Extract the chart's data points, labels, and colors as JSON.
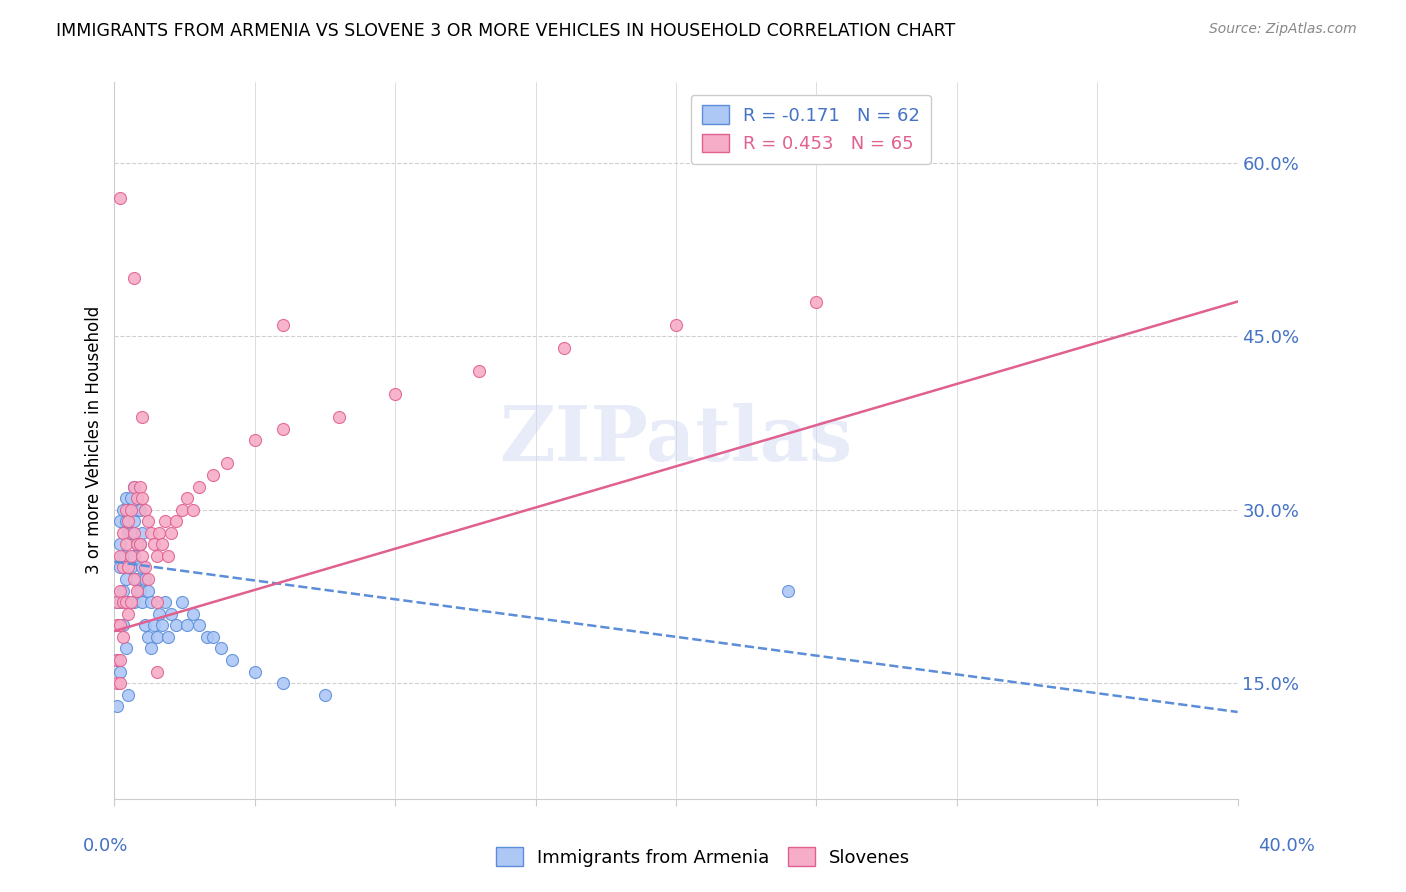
{
  "title": "IMMIGRANTS FROM ARMENIA VS SLOVENE 3 OR MORE VEHICLES IN HOUSEHOLD CORRELATION CHART",
  "source": "Source: ZipAtlas.com",
  "ylabel": "3 or more Vehicles in Household",
  "ytick_vals": [
    0.15,
    0.3,
    0.45,
    0.6
  ],
  "ytick_labels": [
    "15.0%",
    "30.0%",
    "45.0%",
    "60.0%"
  ],
  "xmin": 0.0,
  "xmax": 0.4,
  "ymin": 0.05,
  "ymax": 0.67,
  "scatter_color_armenia": "#adc8f5",
  "scatter_color_slovene": "#f5adc8",
  "line_color_armenia": "#5b8dd9",
  "line_color_slovene": "#e06090",
  "legend_label_armenia": "Immigrants from Armenia",
  "legend_label_slovene": "Slovenes",
  "legend_r1": "R = -0.171",
  "legend_n1": "N = 62",
  "legend_r2": "R = 0.453",
  "legend_n2": "N = 65",
  "armenia_x": [
    0.001,
    0.001,
    0.001,
    0.002,
    0.002,
    0.002,
    0.002,
    0.002,
    0.003,
    0.003,
    0.003,
    0.003,
    0.004,
    0.004,
    0.004,
    0.004,
    0.005,
    0.005,
    0.005,
    0.005,
    0.006,
    0.006,
    0.006,
    0.007,
    0.007,
    0.007,
    0.007,
    0.008,
    0.008,
    0.008,
    0.009,
    0.009,
    0.009,
    0.01,
    0.01,
    0.01,
    0.011,
    0.011,
    0.012,
    0.012,
    0.013,
    0.013,
    0.014,
    0.015,
    0.016,
    0.017,
    0.018,
    0.019,
    0.02,
    0.022,
    0.024,
    0.026,
    0.028,
    0.03,
    0.033,
    0.035,
    0.038,
    0.042,
    0.05,
    0.06,
    0.075,
    0.24
  ],
  "armenia_y": [
    0.22,
    0.17,
    0.13,
    0.29,
    0.27,
    0.25,
    0.22,
    0.16,
    0.3,
    0.26,
    0.23,
    0.2,
    0.31,
    0.29,
    0.24,
    0.18,
    0.3,
    0.28,
    0.22,
    0.14,
    0.31,
    0.28,
    0.25,
    0.32,
    0.29,
    0.26,
    0.22,
    0.3,
    0.27,
    0.24,
    0.3,
    0.27,
    0.23,
    0.28,
    0.25,
    0.22,
    0.24,
    0.2,
    0.23,
    0.19,
    0.22,
    0.18,
    0.2,
    0.19,
    0.21,
    0.2,
    0.22,
    0.19,
    0.21,
    0.2,
    0.22,
    0.2,
    0.21,
    0.2,
    0.19,
    0.19,
    0.18,
    0.17,
    0.16,
    0.15,
    0.14,
    0.23
  ],
  "slovene_x": [
    0.001,
    0.001,
    0.001,
    0.001,
    0.002,
    0.002,
    0.002,
    0.002,
    0.002,
    0.003,
    0.003,
    0.003,
    0.003,
    0.004,
    0.004,
    0.004,
    0.005,
    0.005,
    0.005,
    0.006,
    0.006,
    0.006,
    0.007,
    0.007,
    0.007,
    0.008,
    0.008,
    0.008,
    0.009,
    0.009,
    0.01,
    0.01,
    0.011,
    0.011,
    0.012,
    0.012,
    0.013,
    0.014,
    0.015,
    0.015,
    0.016,
    0.017,
    0.018,
    0.019,
    0.02,
    0.022,
    0.024,
    0.026,
    0.028,
    0.03,
    0.035,
    0.04,
    0.05,
    0.06,
    0.08,
    0.1,
    0.13,
    0.16,
    0.2,
    0.25,
    0.06,
    0.002,
    0.01,
    0.007,
    0.015
  ],
  "slovene_y": [
    0.22,
    0.2,
    0.17,
    0.15,
    0.26,
    0.23,
    0.2,
    0.17,
    0.15,
    0.28,
    0.25,
    0.22,
    0.19,
    0.3,
    0.27,
    0.22,
    0.29,
    0.25,
    0.21,
    0.3,
    0.26,
    0.22,
    0.32,
    0.28,
    0.24,
    0.31,
    0.27,
    0.23,
    0.32,
    0.27,
    0.31,
    0.26,
    0.3,
    0.25,
    0.29,
    0.24,
    0.28,
    0.27,
    0.26,
    0.22,
    0.28,
    0.27,
    0.29,
    0.26,
    0.28,
    0.29,
    0.3,
    0.31,
    0.3,
    0.32,
    0.33,
    0.34,
    0.36,
    0.37,
    0.38,
    0.4,
    0.42,
    0.44,
    0.46,
    0.48,
    0.46,
    0.57,
    0.38,
    0.5,
    0.16
  ]
}
